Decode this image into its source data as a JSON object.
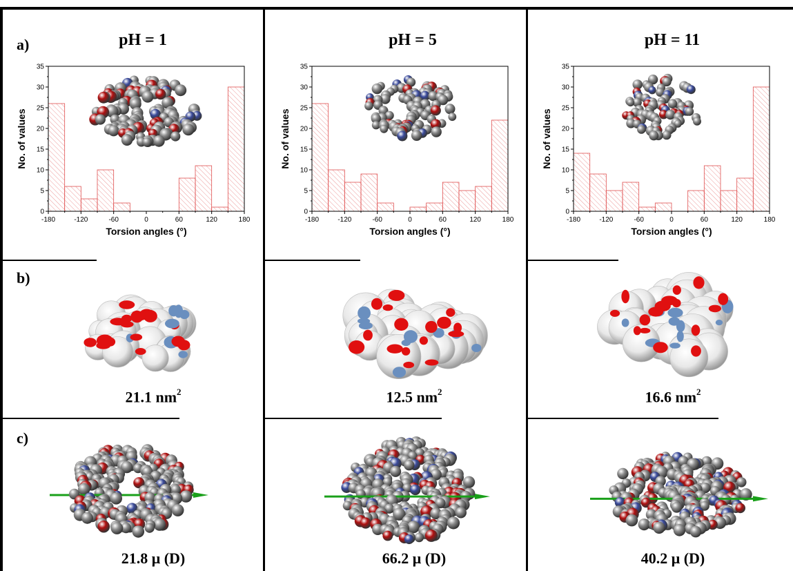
{
  "row_labels": {
    "a": "a)",
    "b": "b)",
    "c": "c)"
  },
  "columns": [
    {
      "title": "pH = 1",
      "area_value": "21.1",
      "area_unit": "nm",
      "area_sup": "2",
      "dipole": "21.8 μ (D)"
    },
    {
      "title": "pH = 5",
      "area_value": "12.5",
      "area_unit": "nm",
      "area_sup": "2",
      "dipole": "66.2 μ (D)"
    },
    {
      "title": "pH = 11",
      "area_value": "16.6",
      "area_unit": "nm",
      "area_sup": "2",
      "dipole": "40.2 μ (D)"
    }
  ],
  "colors": {
    "bar_stroke": "#e05050",
    "bar_hatch": "#e88080",
    "oxygen": "#b01010",
    "nitrogen": "#3a4a9a",
    "carbon": "#8c8c8c",
    "surface": "#e8e8e8",
    "surface_red": "#e01010",
    "surface_blue": "#6a8fbf",
    "dipole_arrow": "#1aa01a"
  },
  "chart_data": [
    {
      "type": "bar",
      "xlabel": "Torsion angles (°)",
      "ylabel": "No. of values",
      "xlim": [
        -180,
        180
      ],
      "ylim": [
        0,
        35
      ],
      "xticks": [
        -180,
        -120,
        -60,
        0,
        60,
        120,
        180
      ],
      "yticks": [
        0,
        5,
        10,
        15,
        20,
        25,
        30,
        35
      ],
      "bin_width": 30,
      "bin_starts": [
        -180,
        -150,
        -120,
        -90,
        -60,
        -30,
        0,
        30,
        60,
        90,
        120,
        150
      ],
      "values": [
        26,
        6,
        3,
        10,
        2,
        0,
        0,
        0,
        8,
        11,
        1,
        30
      ]
    },
    {
      "type": "bar",
      "xlabel": "Torsion angles (°)",
      "ylabel": "No. of values",
      "xlim": [
        -180,
        180
      ],
      "ylim": [
        0,
        35
      ],
      "xticks": [
        -180,
        -120,
        -60,
        0,
        60,
        120,
        180
      ],
      "yticks": [
        0,
        5,
        10,
        15,
        20,
        25,
        30,
        35
      ],
      "bin_width": 30,
      "bin_starts": [
        -180,
        -150,
        -120,
        -90,
        -60,
        -30,
        0,
        30,
        60,
        90,
        120,
        150
      ],
      "values": [
        26,
        10,
        7,
        9,
        2,
        0,
        1,
        2,
        7,
        5,
        6,
        22
      ]
    },
    {
      "type": "bar",
      "xlabel": "Torsion angles (°)",
      "ylabel": "No. of values",
      "xlim": [
        -180,
        180
      ],
      "ylim": [
        0,
        35
      ],
      "xticks": [
        -180,
        -120,
        -60,
        0,
        60,
        120,
        180
      ],
      "yticks": [
        0,
        5,
        10,
        15,
        20,
        25,
        30,
        35
      ],
      "bin_width": 30,
      "bin_starts": [
        -180,
        -150,
        -120,
        -90,
        -60,
        -30,
        0,
        30,
        60,
        90,
        120,
        150
      ],
      "values": [
        14,
        9,
        5,
        7,
        1,
        2,
        0,
        5,
        11,
        5,
        8,
        30
      ]
    }
  ]
}
